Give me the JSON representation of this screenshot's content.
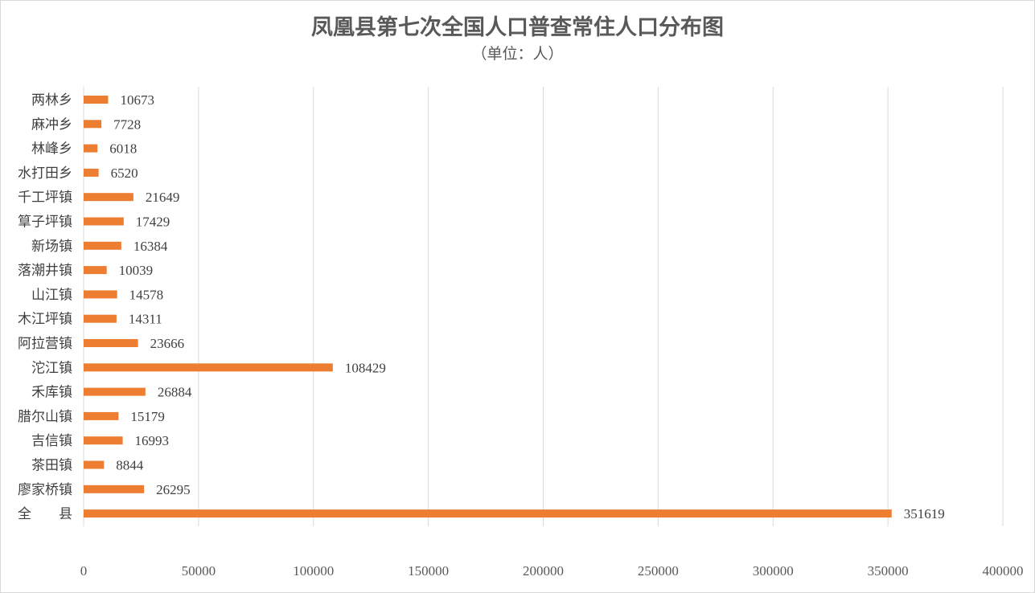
{
  "chart_data": {
    "type": "bar",
    "orientation": "horizontal",
    "title": "凤凰县第七次全国人口普查常住人口分布图",
    "subtitle": "（单位：人）",
    "categories": [
      "两林乡",
      "麻冲乡",
      "林峰乡",
      "水打田乡",
      "千工坪镇",
      "筸子坪镇",
      "新场镇",
      "落潮井镇",
      "山江镇",
      "木江坪镇",
      "阿拉营镇",
      "沱江镇",
      "禾库镇",
      "腊尔山镇",
      "吉信镇",
      "茶田镇",
      "廖家桥镇",
      "全　　县"
    ],
    "values": [
      10673,
      7728,
      6018,
      6520,
      21649,
      17429,
      16384,
      10039,
      14578,
      14311,
      23666,
      108429,
      26884,
      15179,
      16993,
      8844,
      26295,
      351619
    ],
    "xlim": [
      0,
      400000
    ],
    "xticks": [
      0,
      50000,
      100000,
      150000,
      200000,
      250000,
      300000,
      350000,
      400000
    ],
    "grid": true,
    "bar_color": "#ed7d31",
    "grid_color": "#d9d9d9"
  }
}
